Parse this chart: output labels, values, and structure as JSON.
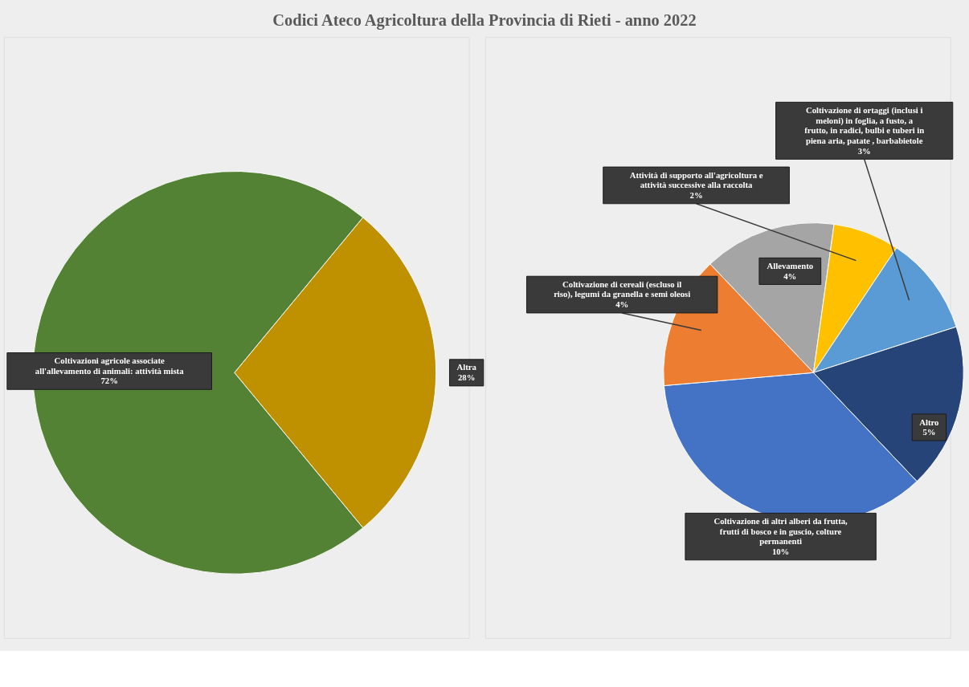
{
  "chart_data": [
    {
      "type": "pie",
      "title": "Codici Ateco Agricoltura della Provincia di Rieti - anno 2022",
      "categories": [
        "Altra",
        "Coltivazioni agricole associate all'allevamento di animali: attività mista"
      ],
      "values": [
        28,
        72
      ],
      "colors": [
        "#bf9000",
        "#548235"
      ],
      "value_labels": [
        "28%",
        "72%"
      ]
    },
    {
      "type": "pie",
      "categories": [
        "Allevamento",
        "Attività di supporto all'agricoltura e attività successive alla raccolta",
        "Coltivazione di ortaggi (inclusi i meloni) in foglia, a fusto, a frutto, in radici, bulbi e tuberi in piena aria, patate , barbabietole",
        "Altro",
        "Coltivazione di altri alberi da frutta, frutti di bosco e in guscio, colture permanenti",
        "Coltivazione di cereali (escluso il riso), legumi da granella e semi oleosi"
      ],
      "values": [
        4,
        2,
        3,
        5,
        10,
        4
      ],
      "colors": [
        "#a5a5a5",
        "#ffc000",
        "#5b9bd5",
        "#264478",
        "#4472c4",
        "#ed7d31"
      ],
      "value_labels": [
        "4%",
        "2%",
        "3%",
        "5%",
        "10%",
        "4%"
      ]
    }
  ]
}
